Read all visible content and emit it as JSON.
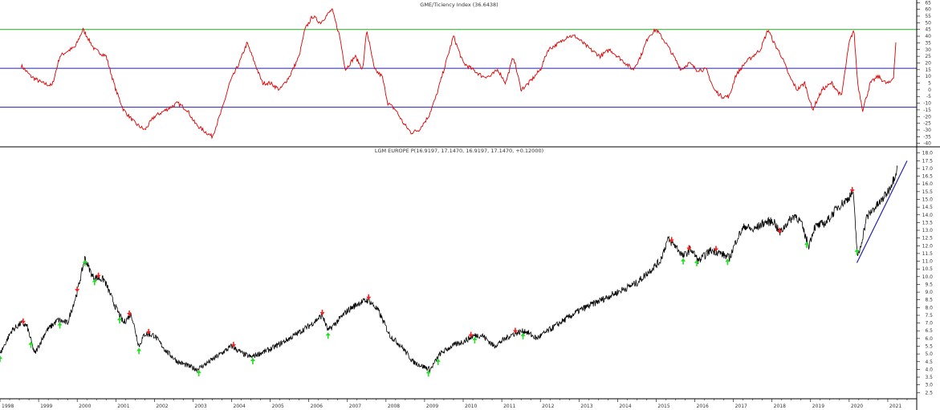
{
  "chart_data": [
    {
      "type": "line",
      "title": "GME/Ticiency Index (36.6438)",
      "ylim": [
        -42,
        67
      ],
      "yticks": [
        65,
        60,
        55,
        50,
        45,
        40,
        35,
        30,
        25,
        20,
        15,
        10,
        5,
        0,
        -5,
        -10,
        -15,
        -20,
        -25,
        -30,
        -35,
        -40
      ],
      "reference_lines": [
        {
          "value": 45,
          "color": "#22aa22"
        },
        {
          "value": 16,
          "color": "#2222aa"
        },
        {
          "value": -13,
          "color": "#2222aa"
        }
      ],
      "series": [
        {
          "color": "#dd0000",
          "x": [
            1998.55,
            1998.8,
            1999.1,
            1999.35,
            1999.55,
            1999.7,
            1999.95,
            2000.15,
            2000.45,
            2000.75,
            2001.0,
            2001.2,
            2001.5,
            2001.75,
            2002.0,
            2002.3,
            2002.6,
            2002.85,
            2003.05,
            2003.25,
            2003.5,
            2003.75,
            2003.95,
            2004.2,
            2004.4,
            2004.6,
            2004.8,
            2005.0,
            2005.25,
            2005.5,
            2005.75,
            2005.9,
            2006.1,
            2006.3,
            2006.45,
            2006.6,
            2006.8,
            2006.95,
            2007.2,
            2007.4,
            2007.5,
            2007.7,
            2007.9,
            2008.05,
            2008.25,
            2008.45,
            2008.65,
            2008.85,
            2009.1,
            2009.3,
            2009.55,
            2009.75,
            2010.0,
            2010.25,
            2010.5,
            2010.7,
            2010.9,
            2011.1,
            2011.3,
            2011.5,
            2011.7,
            2011.85,
            2012.0,
            2012.2,
            2012.5,
            2012.7,
            2012.9,
            2013.1,
            2013.3,
            2013.55,
            2013.8,
            2014.0,
            2014.2,
            2014.4,
            2014.6,
            2014.8,
            2015.0,
            2015.25,
            2015.45,
            2015.65,
            2015.85,
            2016.05,
            2016.3,
            2016.5,
            2016.7,
            2016.9,
            2017.05,
            2017.3,
            2017.5,
            2017.7,
            2017.9,
            2018.05,
            2018.25,
            2018.45,
            2018.65,
            2018.85,
            2019.05,
            2019.3,
            2019.55,
            2019.8,
            2020.0,
            2020.12,
            2020.22,
            2020.35,
            2020.55,
            2020.75,
            2020.95,
            2021.05,
            2021.15,
            2021.22
          ],
          "y": [
            18,
            10,
            5,
            3,
            25,
            28,
            32,
            45,
            30,
            25,
            0,
            -15,
            -25,
            -30,
            -20,
            -15,
            -10,
            -15,
            -25,
            -30,
            -35,
            -15,
            5,
            20,
            35,
            20,
            5,
            5,
            0,
            10,
            25,
            45,
            55,
            50,
            55,
            60,
            40,
            15,
            25,
            15,
            45,
            15,
            10,
            -10,
            -15,
            -25,
            -32,
            -30,
            -20,
            -5,
            20,
            40,
            20,
            15,
            10,
            10,
            15,
            5,
            25,
            0,
            5,
            10,
            15,
            30,
            35,
            40,
            40,
            35,
            30,
            25,
            30,
            25,
            20,
            15,
            25,
            40,
            45,
            35,
            25,
            15,
            20,
            15,
            15,
            0,
            -5,
            -5,
            10,
            20,
            25,
            30,
            45,
            35,
            25,
            10,
            0,
            5,
            -15,
            0,
            5,
            -5,
            35,
            45,
            5,
            -15,
            5,
            10,
            5,
            5,
            10,
            40
          ]
        }
      ]
    },
    {
      "type": "line",
      "title": "LGM EUROPE P(16.9197, 17.1470, 16.9197, 17.1470, +0.12000)",
      "ylim": [
        2.1,
        18.4
      ],
      "yticks": [
        18.0,
        17.5,
        17.0,
        16.5,
        16.0,
        15.5,
        15.0,
        14.5,
        14.0,
        13.5,
        13.0,
        12.5,
        12.0,
        11.5,
        11.0,
        10.5,
        10.0,
        9.5,
        9.0,
        8.5,
        8.0,
        7.5,
        7.0,
        6.5,
        6.0,
        5.5,
        5.0,
        4.5,
        4.0,
        3.5,
        3.0,
        2.5
      ],
      "xlim": [
        1998.0,
        2021.75
      ],
      "xticks": [
        "1998",
        "1999",
        "2000",
        "2001",
        "2002",
        "2003",
        "2004",
        "2005",
        "2006",
        "2007",
        "2008",
        "2009",
        "2010",
        "2011",
        "2012",
        "2013",
        "2014",
        "2015",
        "2016",
        "2017",
        "2018",
        "2019",
        "2020",
        "2021"
      ],
      "series": [
        {
          "color": "#000000",
          "x": [
            1998.0,
            1998.3,
            1998.55,
            1998.7,
            1998.9,
            1999.2,
            1999.5,
            1999.75,
            2000.0,
            2000.2,
            2000.4,
            2000.7,
            2001.0,
            2001.2,
            2001.4,
            2001.6,
            2001.75,
            2002.0,
            2002.3,
            2002.6,
            2002.9,
            2003.1,
            2003.3,
            2003.6,
            2004.0,
            2004.3,
            2004.5,
            2004.7,
            2005.0,
            2005.5,
            2006.0,
            2006.35,
            2006.5,
            2006.7,
            2007.0,
            2007.3,
            2007.55,
            2007.8,
            2008.1,
            2008.4,
            2008.7,
            2008.95,
            2009.15,
            2009.4,
            2009.7,
            2010.0,
            2010.3,
            2010.5,
            2010.8,
            2011.1,
            2011.3,
            2011.6,
            2011.9,
            2012.5,
            2013.0,
            2013.5,
            2014.0,
            2014.5,
            2014.8,
            2015.1,
            2015.3,
            2015.5,
            2015.7,
            2015.9,
            2016.1,
            2016.4,
            2016.6,
            2016.9,
            2017.1,
            2017.3,
            2017.5,
            2017.8,
            2018.05,
            2018.2,
            2018.4,
            2018.6,
            2018.75,
            2018.95,
            2019.1,
            2019.4,
            2019.7,
            2019.95,
            2020.1,
            2020.17,
            2020.22,
            2020.3,
            2020.45,
            2020.6,
            2020.8,
            2021.0,
            2021.15,
            2021.25
          ],
          "y": [
            5.0,
            6.5,
            7.0,
            6.8,
            5.0,
            6.5,
            7.2,
            7.0,
            9.0,
            11.2,
            10.0,
            9.8,
            8.0,
            7.0,
            7.6,
            5.5,
            6.3,
            6.2,
            5.2,
            4.5,
            4.2,
            4.0,
            4.3,
            4.8,
            5.5,
            5.0,
            4.8,
            5.0,
            5.3,
            6.0,
            6.8,
            7.5,
            6.5,
            7.0,
            7.8,
            8.3,
            8.5,
            7.8,
            6.2,
            5.5,
            4.5,
            4.2,
            4.0,
            5.0,
            5.5,
            5.8,
            6.2,
            6.2,
            5.5,
            6.0,
            6.3,
            6.5,
            6.0,
            7.0,
            7.8,
            8.4,
            9.0,
            9.6,
            10.3,
            11.0,
            12.4,
            12.0,
            11.3,
            11.8,
            11.0,
            11.7,
            11.6,
            11.2,
            12.5,
            13.3,
            13.0,
            13.5,
            13.6,
            12.8,
            13.5,
            14.0,
            13.5,
            12.0,
            13.2,
            13.5,
            14.5,
            15.0,
            15.5,
            13.0,
            11.2,
            12.0,
            13.8,
            14.3,
            14.8,
            15.5,
            16.3,
            17.1
          ]
        }
      ],
      "trendline": {
        "color": "#2222aa",
        "x": [
          2020.2,
          2021.5
        ],
        "y": [
          10.9,
          17.5
        ]
      },
      "signals": [
        {
          "kind": "sell",
          "color": "#ee2222",
          "x": [
            1998.6,
            2000.0,
            2000.55,
            2001.35,
            2001.85,
            2004.05,
            2006.35,
            2007.55,
            2010.2,
            2011.35,
            2015.4,
            2015.85,
            2016.55,
            2018.2,
            2020.08
          ]
        },
        {
          "kind": "buy",
          "color": "#22dd22",
          "x": [
            1998.0,
            1998.8,
            1999.55,
            2000.2,
            2000.45,
            2001.1,
            2001.6,
            2003.15,
            2004.55,
            2006.5,
            2009.1,
            2009.35,
            2010.3,
            2011.55,
            2015.7,
            2016.05,
            2016.85,
            2018.9,
            2020.2
          ]
        }
      ]
    }
  ]
}
